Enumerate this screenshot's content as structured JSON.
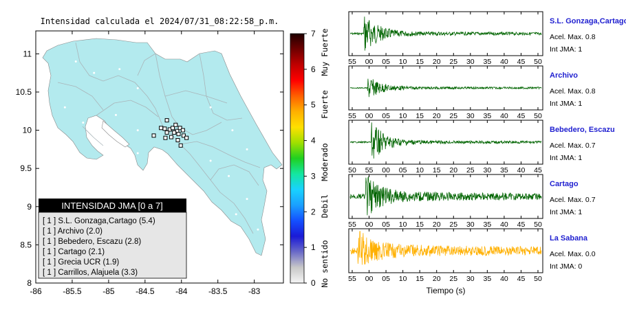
{
  "map": {
    "title": "Intensidad calculada el 2024/07/31_08:22:58_p.m.",
    "lon_ticks": [
      "-86",
      "-85.5",
      "-85",
      "-84.5",
      "-84",
      "-83.5",
      "-83"
    ],
    "lat_ticks": [
      "8",
      "8.5",
      "9",
      "9.5",
      "10",
      "10.5",
      "11"
    ],
    "xlim": [
      -86,
      -82.6
    ],
    "ylim": [
      8,
      11.3
    ],
    "land_color": "#b3eaee",
    "stations": [
      {
        "lon": -84.16,
        "lat": 10.01
      },
      {
        "lon": -84.12,
        "lat": 10.03
      },
      {
        "lon": -84.06,
        "lat": 9.99
      },
      {
        "lon": -84.02,
        "lat": 10.03
      },
      {
        "lon": -83.98,
        "lat": 10.0
      },
      {
        "lon": -84.1,
        "lat": 9.97
      },
      {
        "lon": -84.04,
        "lat": 9.95
      },
      {
        "lon": -83.97,
        "lat": 9.93
      },
      {
        "lon": -84.14,
        "lat": 9.91
      },
      {
        "lon": -84.2,
        "lat": 9.97
      },
      {
        "lon": -84.23,
        "lat": 10.02
      },
      {
        "lon": -84.28,
        "lat": 10.03
      },
      {
        "lon": -84.2,
        "lat": 10.13
      },
      {
        "lon": -84.08,
        "lat": 10.07
      },
      {
        "lon": -84.38,
        "lat": 9.93
      },
      {
        "lon": -84.22,
        "lat": 9.9
      },
      {
        "lon": -84.05,
        "lat": 9.87
      },
      {
        "lon": -84.01,
        "lat": 9.8
      },
      {
        "lon": -83.93,
        "lat": 9.9
      }
    ]
  },
  "legend": {
    "title": "INTENSIDAD JMA [0 a 7]",
    "items": [
      "[ 1 ]  S.L. Gonzaga,Cartago (5.4)",
      "[ 1 ]  Archivo (2.0)",
      "[ 1 ]  Bebedero, Escazu (2.8)",
      "[ 1 ]  Cartago (2.1)",
      "[ 1 ]  Grecia UCR (1.9)",
      "[ 1 ]  Carrillos, Alajuela (3.3)"
    ]
  },
  "colorbar": {
    "ticks": [
      "0",
      "1",
      "2",
      "3",
      "4",
      "5",
      "6",
      "7"
    ],
    "labels": [
      "No sentido",
      "Debil",
      "Moderado",
      "Fuerte",
      "Muy Fuerte"
    ],
    "stops": [
      "#f5f5f5",
      "#c8c8c8",
      "#6a6ac8",
      "#1a1ad6",
      "#1450ff",
      "#1aa0ff",
      "#19d2ff",
      "#14e6a0",
      "#20d020",
      "#a0e000",
      "#ffe000",
      "#ffb000",
      "#ff6000",
      "#ff0000",
      "#c00000",
      "#700000",
      "#200000"
    ]
  },
  "chart_data": {
    "type": "line",
    "xlabel": "Tiempo (s)",
    "traces": [
      {
        "station": "S.L. Gonzaga,Cartago",
        "acel": "Acel. Max. 0.8",
        "jma": "Int JMA: 1",
        "color": "#006400",
        "ticks": [
          "55",
          "00",
          "05",
          "10",
          "15",
          "20",
          "25",
          "30",
          "35",
          "40",
          "45",
          "50"
        ],
        "amp": 0.95,
        "noise": 0.08,
        "onset": 0.07
      },
      {
        "station": "Archivo",
        "acel": "Acel. Max. 0.8",
        "jma": "Int JMA: 1",
        "color": "#006400",
        "ticks": [
          "55",
          "00",
          "05",
          "10",
          "15",
          "20",
          "25",
          "30",
          "35",
          "40",
          "45",
          "50"
        ],
        "amp": 0.55,
        "noise": 0.04,
        "onset": 0.09
      },
      {
        "station": "Bebedero, Escazu",
        "acel": "Acel. Max. 0.7",
        "jma": "Int JMA: 1",
        "color": "#006400",
        "ticks": [
          "50",
          "55",
          "00",
          "05",
          "10",
          "15",
          "20",
          "25",
          "30",
          "35",
          "40",
          "45"
        ],
        "amp": 0.95,
        "noise": 0.06,
        "onset": 0.11
      },
      {
        "station": "Cartago",
        "acel": "Acel. Max. 0.7",
        "jma": "Int JMA: 1",
        "color": "#006400",
        "ticks": [
          "55",
          "00",
          "05",
          "10",
          "15",
          "20",
          "25",
          "30",
          "35",
          "40",
          "45",
          "50"
        ],
        "amp": 0.9,
        "noise": 0.22,
        "onset": 0.08
      },
      {
        "station": "La Sabana",
        "acel": "Acel. Max. 0.0",
        "jma": "Int JMA: 0",
        "color": "#ffb000",
        "ticks": [
          "55",
          "00",
          "05",
          "10",
          "15",
          "20",
          "25",
          "30",
          "35",
          "40",
          "45",
          "50"
        ],
        "amp": 0.85,
        "noise": 0.3,
        "onset": 0.04
      }
    ]
  }
}
